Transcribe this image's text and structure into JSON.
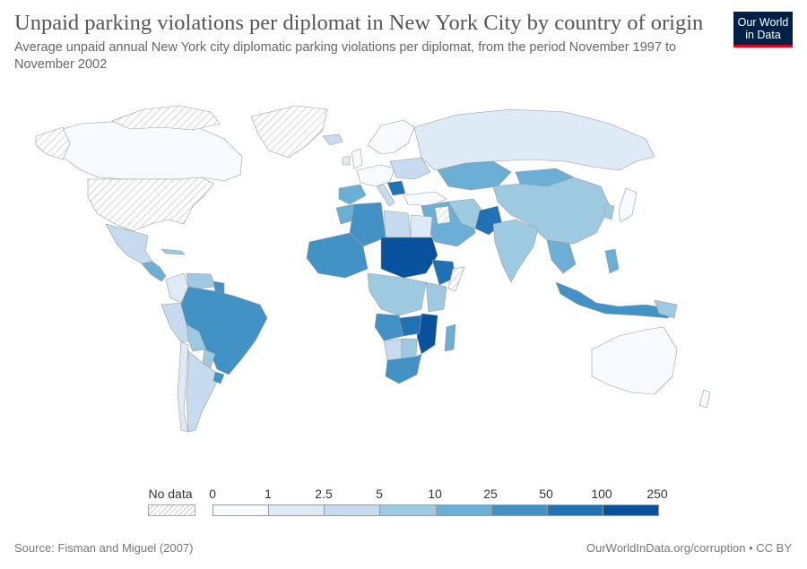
{
  "header": {
    "title": "Unpaid parking violations per diplomat in New York City by country of origin",
    "subtitle": "Average unpaid annual New York city diplomatic parking violations per diplomat, from the period November 1997 to November 2002"
  },
  "logo": {
    "line1": "Our World",
    "line2": "in Data"
  },
  "legend": {
    "no_data_label": "No data",
    "bins": [
      "0",
      "1",
      "2.5",
      "5",
      "10",
      "25",
      "50",
      "100",
      "250"
    ],
    "colors": [
      "#f7fbff",
      "#deebf7",
      "#c6dbef",
      "#9ecae1",
      "#6baed6",
      "#4292c6",
      "#2171b5",
      "#08519c"
    ],
    "nodata_color": "hatched-grey"
  },
  "footer": {
    "source": "Source: Fisman and Miguel (2007)",
    "credit": "OurWorldInData.org/corruption • CC BY"
  }
}
